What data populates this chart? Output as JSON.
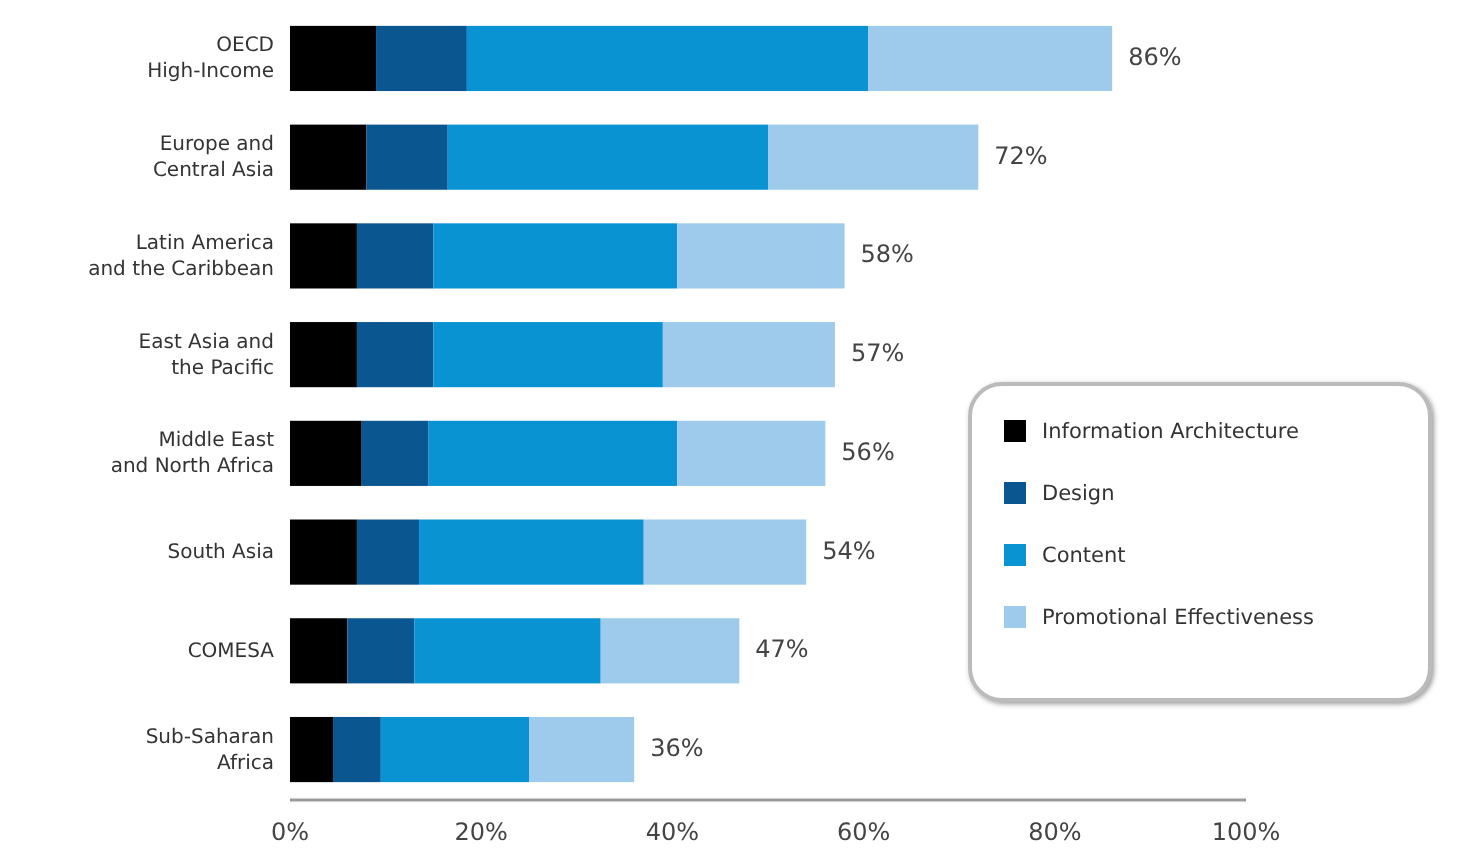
{
  "chart_data": {
    "type": "bar",
    "orientation": "horizontal",
    "stacked": true,
    "categories": [
      "OECD\nHigh-Income",
      "Europe and\nCentral Asia",
      "Latin America\nand the Caribbean",
      "East Asia and\nthe Pacific",
      "Middle East\nand North Africa",
      "South Asia",
      "COMESA",
      "Sub-Saharan\nAfrica"
    ],
    "series": [
      {
        "name": "Information Architecture",
        "color": "#000000",
        "values": [
          9,
          8,
          7,
          7,
          7.5,
          7,
          6,
          4.5
        ]
      },
      {
        "name": "Design",
        "color": "#0a5690",
        "values": [
          9.5,
          8.5,
          8,
          8,
          7,
          6.5,
          7,
          5
        ]
      },
      {
        "name": "Content",
        "color": "#0993d3",
        "values": [
          42,
          33.5,
          25.5,
          24,
          26,
          23.5,
          19.5,
          15.5
        ]
      },
      {
        "name": "Promotional Effectiveness",
        "color": "#9ecbec",
        "values": [
          25.5,
          22,
          17.5,
          18,
          15.5,
          17,
          14.5,
          11
        ]
      }
    ],
    "totals": [
      "86%",
      "72%",
      "58%",
      "57%",
      "56%",
      "54%",
      "47%",
      "36%"
    ],
    "xlim": [
      0,
      100
    ],
    "xticks": [
      {
        "value": 0,
        "label": "0%"
      },
      {
        "value": 20,
        "label": "20%"
      },
      {
        "value": 40,
        "label": "40%"
      },
      {
        "value": 60,
        "label": "60%"
      },
      {
        "value": 80,
        "label": "80%"
      },
      {
        "value": 100,
        "label": "100%"
      }
    ],
    "legend": "bottom right"
  }
}
